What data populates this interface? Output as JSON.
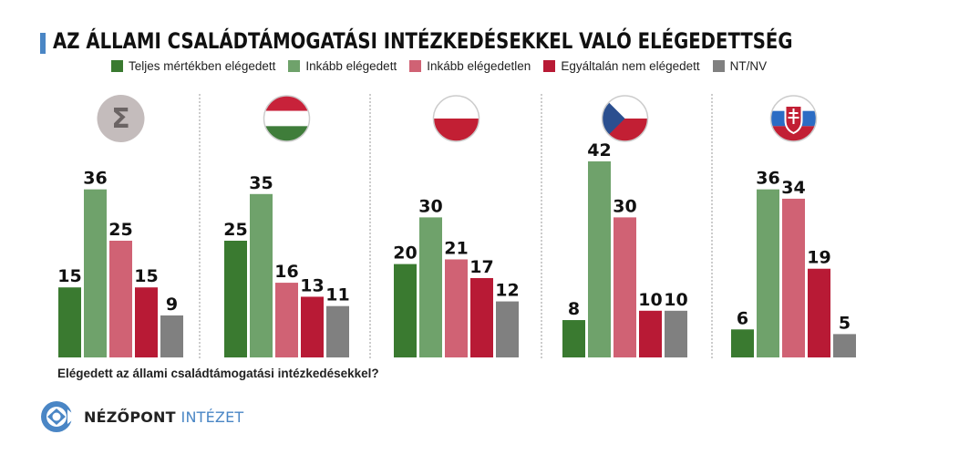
{
  "chart_data": {
    "type": "bar",
    "title": "AZ ÁLLAMI CSALÁDTÁMOGATÁSI INTÉZKEDÉSEKKEL VALÓ ELÉGEDETTSÉG",
    "question": "Elégedett az állami családtámogatási intézkedésekkel?",
    "legend_placement": "top",
    "unit": "%",
    "categories": [
      "Teljes mértékben elégedett",
      "Inkább elégedett",
      "Inkább elégedetlen",
      "Egyáltalán nem elégedett",
      "NT/NV"
    ],
    "colors": [
      "#3a7a30",
      "#6fa26b",
      "#d06274",
      "#b81a35",
      "#808080"
    ],
    "ylim": [
      0,
      45
    ],
    "panels": [
      {
        "name": "Összesen",
        "icon": "sigma-icon",
        "values": [
          15,
          36,
          25,
          15,
          9
        ]
      },
      {
        "name": "Magyarország",
        "icon": "hungary-flag-icon",
        "values": [
          25,
          35,
          16,
          13,
          11
        ]
      },
      {
        "name": "Lengyelország",
        "icon": "poland-flag-icon",
        "values": [
          20,
          30,
          21,
          17,
          12
        ]
      },
      {
        "name": "Csehország",
        "icon": "czech-flag-icon",
        "values": [
          8,
          42,
          30,
          10,
          10
        ]
      },
      {
        "name": "Szlovákia",
        "icon": "slovakia-flag-icon",
        "values": [
          6,
          36,
          34,
          19,
          5
        ]
      }
    ]
  },
  "logo": {
    "part1": "NÉZŐPONT",
    "part2": "INTÉZET"
  }
}
